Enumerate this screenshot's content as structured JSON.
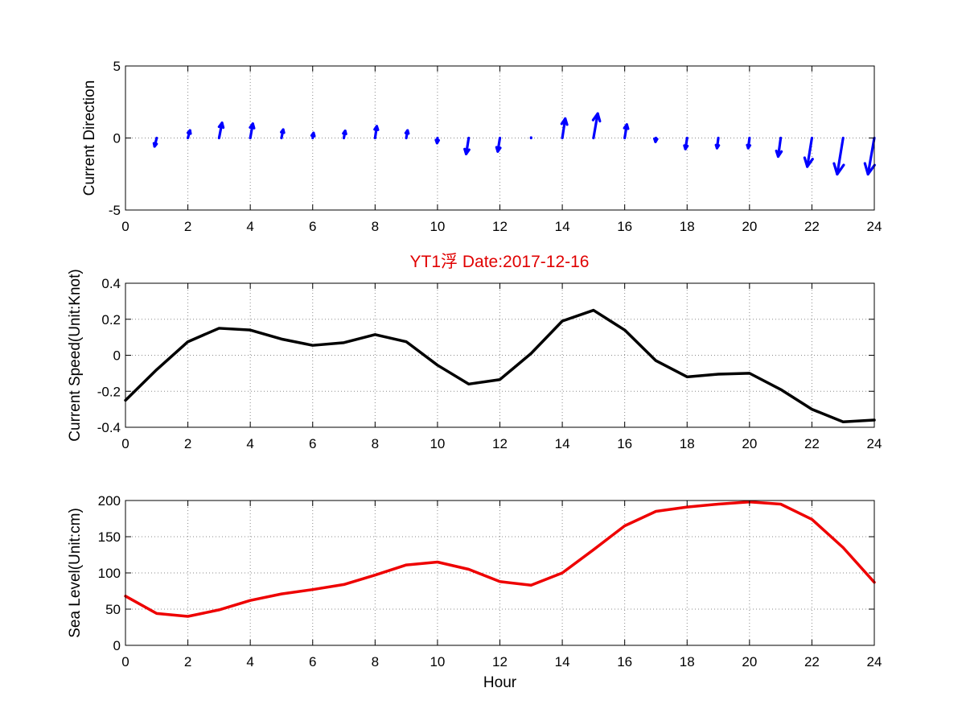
{
  "figure": {
    "title": "YT1浮    Date:2017-12-16"
  },
  "chart_data": [
    {
      "type": "quiver",
      "ylabel": "Current Direction",
      "xlabel": "",
      "xlim": [
        0,
        24
      ],
      "ylim": [
        -5,
        5
      ],
      "xticks": [
        "0",
        "2",
        "4",
        "6",
        "8",
        "10",
        "12",
        "14",
        "16",
        "18",
        "20",
        "22",
        "24"
      ],
      "yticks": [
        "-5",
        "0",
        "5"
      ],
      "grid": true,
      "color": "#0000ff",
      "arrows": [
        {
          "x": 1,
          "u": -0.25,
          "v": -1.0
        },
        {
          "x": 2,
          "u": 0.25,
          "v": 0.9
        },
        {
          "x": 3,
          "u": 0.35,
          "v": 1.8
        },
        {
          "x": 4,
          "u": 0.3,
          "v": 1.7
        },
        {
          "x": 5,
          "u": 0.2,
          "v": 1.0
        },
        {
          "x": 6,
          "u": 0.1,
          "v": 0.6
        },
        {
          "x": 7,
          "u": 0.15,
          "v": 0.85
        },
        {
          "x": 8,
          "u": 0.2,
          "v": 1.4
        },
        {
          "x": 9,
          "u": 0.15,
          "v": 0.9
        },
        {
          "x": 10,
          "u": -0.05,
          "v": -0.6
        },
        {
          "x": 11,
          "u": -0.3,
          "v": -1.9
        },
        {
          "x": 12,
          "u": -0.25,
          "v": -1.6
        },
        {
          "x": 13,
          "u": 0.0,
          "v": 0.05
        },
        {
          "x": 14,
          "u": 0.35,
          "v": 2.3
        },
        {
          "x": 15,
          "u": 0.5,
          "v": 2.9
        },
        {
          "x": 16,
          "u": 0.25,
          "v": 1.6
        },
        {
          "x": 17,
          "u": -0.05,
          "v": -0.45
        },
        {
          "x": 18,
          "u": -0.2,
          "v": -1.3
        },
        {
          "x": 19,
          "u": -0.15,
          "v": -1.2
        },
        {
          "x": 20,
          "u": -0.15,
          "v": -1.2
        },
        {
          "x": 21,
          "u": -0.3,
          "v": -2.2
        },
        {
          "x": 22,
          "u": -0.55,
          "v": -3.4
        },
        {
          "x": 23,
          "u": -0.7,
          "v": -4.3
        },
        {
          "x": 24,
          "u": -0.75,
          "v": -4.3
        }
      ]
    },
    {
      "type": "line",
      "ylabel": "Current Speed(Unit:Knot)",
      "xlabel": "",
      "xlim": [
        0,
        24
      ],
      "ylim": [
        -0.4,
        0.4
      ],
      "xticks": [
        "0",
        "2",
        "4",
        "6",
        "8",
        "10",
        "12",
        "14",
        "16",
        "18",
        "20",
        "22",
        "24"
      ],
      "yticks": [
        "-0.4",
        "-0.2",
        "0",
        "0.2",
        "0.4"
      ],
      "grid": true,
      "series": [
        {
          "color": "#000000",
          "x": [
            0,
            1,
            2,
            3,
            4,
            5,
            6,
            7,
            8,
            9,
            10,
            11,
            12,
            13,
            14,
            15,
            16,
            17,
            18,
            19,
            20,
            21,
            22,
            23,
            24
          ],
          "values": [
            -0.25,
            -0.08,
            0.075,
            0.15,
            0.14,
            0.09,
            0.055,
            0.07,
            0.115,
            0.075,
            -0.055,
            -0.16,
            -0.135,
            0.01,
            0.19,
            0.25,
            0.14,
            -0.03,
            -0.12,
            -0.105,
            -0.1,
            -0.19,
            -0.3,
            -0.37,
            -0.36
          ]
        }
      ]
    },
    {
      "type": "line",
      "ylabel": "Sea Level(Unit:cm)",
      "xlabel": "Hour",
      "xlim": [
        0,
        24
      ],
      "ylim": [
        0,
        200
      ],
      "xticks": [
        "0",
        "2",
        "4",
        "6",
        "8",
        "10",
        "12",
        "14",
        "16",
        "18",
        "20",
        "22",
        "24"
      ],
      "yticks": [
        "0",
        "50",
        "100",
        "150",
        "200"
      ],
      "grid": true,
      "series": [
        {
          "color": "#ee0000",
          "x": [
            0,
            1,
            2,
            3,
            4,
            5,
            6,
            7,
            8,
            9,
            10,
            11,
            12,
            13,
            14,
            15,
            16,
            17,
            18,
            19,
            20,
            21,
            22,
            23,
            24
          ],
          "values": [
            68,
            44,
            40,
            49,
            62,
            71,
            77,
            84,
            97,
            111,
            115,
            105,
            88,
            83,
            100,
            132,
            165,
            185,
            191,
            195,
            198,
            195,
            174,
            135,
            87
          ]
        }
      ]
    }
  ]
}
